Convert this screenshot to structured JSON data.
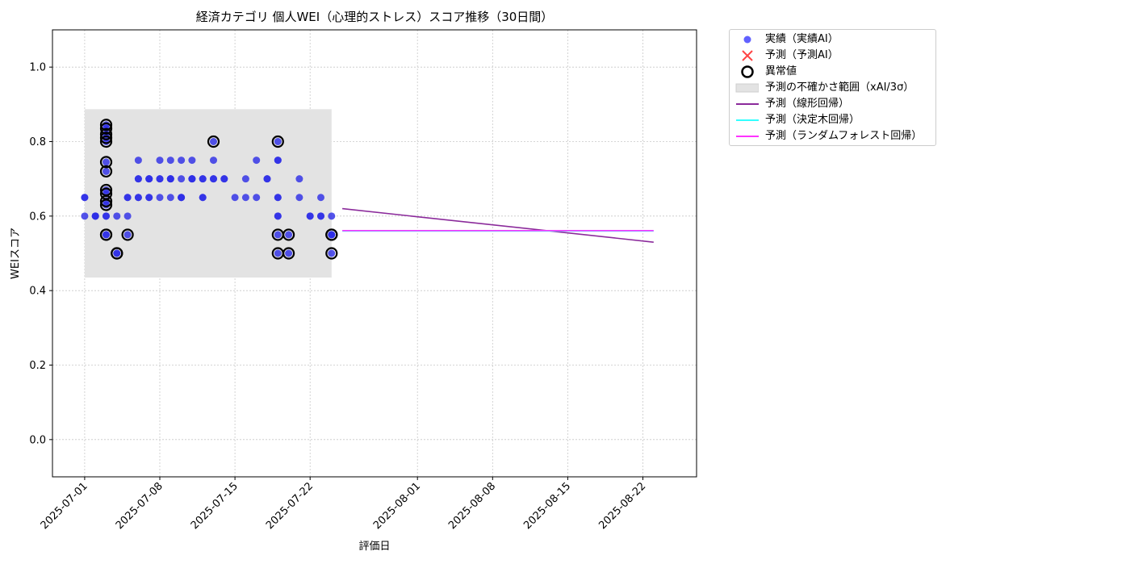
{
  "chart_data": {
    "type": "scatter",
    "title": "経済カテゴリ 個人WEI（心理的ストレス）スコア推移（30日間）",
    "xlabel": "評価日",
    "ylabel": "WEIスコア",
    "xlim": [
      "2025-06-28",
      "2025-08-27"
    ],
    "ylim": [
      -0.1,
      1.1
    ],
    "yticks": [
      0.0,
      0.2,
      0.4,
      0.6,
      0.8,
      1.0
    ],
    "xticks": [
      "2025-07-01",
      "2025-07-08",
      "2025-07-15",
      "2025-07-22",
      "2025-08-01",
      "2025-08-08",
      "2025-08-15",
      "2025-08-22"
    ],
    "grid": true,
    "legend_position": "outside top-right",
    "series": [
      {
        "name": "実績（実績AI）",
        "kind": "scatter",
        "color": "#0000ff",
        "points": [
          [
            "2025-07-01",
            0.65
          ],
          [
            "2025-07-01",
            0.6
          ],
          [
            "2025-07-01",
            0.65
          ],
          [
            "2025-07-02",
            0.6
          ],
          [
            "2025-07-02",
            0.6
          ],
          [
            "2025-07-02",
            0.6
          ],
          [
            "2025-07-03",
            0.6
          ],
          [
            "2025-07-03",
            0.55
          ],
          [
            "2025-07-03",
            0.6
          ],
          [
            "2025-07-03",
            0.63
          ],
          [
            "2025-07-03",
            0.64
          ],
          [
            "2025-07-03",
            0.66
          ],
          [
            "2025-07-03",
            0.67
          ],
          [
            "2025-07-03",
            0.72
          ],
          [
            "2025-07-03",
            0.745
          ],
          [
            "2025-07-03",
            0.8
          ],
          [
            "2025-07-03",
            0.81
          ],
          [
            "2025-07-03",
            0.82
          ],
          [
            "2025-07-03",
            0.835
          ],
          [
            "2025-07-03",
            0.845
          ],
          [
            "2025-07-03",
            0.55
          ],
          [
            "2025-07-04",
            0.5
          ],
          [
            "2025-07-04",
            0.6
          ],
          [
            "2025-07-04",
            0.5
          ],
          [
            "2025-07-05",
            0.55
          ],
          [
            "2025-07-05",
            0.6
          ],
          [
            "2025-07-05",
            0.65
          ],
          [
            "2025-07-05",
            0.65
          ],
          [
            "2025-07-06",
            0.7
          ],
          [
            "2025-07-06",
            0.75
          ],
          [
            "2025-07-06",
            0.65
          ],
          [
            "2025-07-06",
            0.65
          ],
          [
            "2025-07-06",
            0.7
          ],
          [
            "2025-07-07",
            0.7
          ],
          [
            "2025-07-07",
            0.7
          ],
          [
            "2025-07-07",
            0.65
          ],
          [
            "2025-07-07",
            0.65
          ],
          [
            "2025-07-07",
            0.7
          ],
          [
            "2025-07-08",
            0.7
          ],
          [
            "2025-07-08",
            0.65
          ],
          [
            "2025-07-08",
            0.7
          ],
          [
            "2025-07-08",
            0.75
          ],
          [
            "2025-07-09",
            0.7
          ],
          [
            "2025-07-09",
            0.65
          ],
          [
            "2025-07-09",
            0.75
          ],
          [
            "2025-07-09",
            0.7
          ],
          [
            "2025-07-09",
            0.7
          ],
          [
            "2025-07-10",
            0.65
          ],
          [
            "2025-07-10",
            0.7
          ],
          [
            "2025-07-10",
            0.75
          ],
          [
            "2025-07-10",
            0.65
          ],
          [
            "2025-07-10",
            0.65
          ],
          [
            "2025-07-11",
            0.7
          ],
          [
            "2025-07-11",
            0.75
          ],
          [
            "2025-07-11",
            0.7
          ],
          [
            "2025-07-11",
            0.7
          ],
          [
            "2025-07-12",
            0.7
          ],
          [
            "2025-07-12",
            0.7
          ],
          [
            "2025-07-12",
            0.65
          ],
          [
            "2025-07-12",
            0.65
          ],
          [
            "2025-07-13",
            0.7
          ],
          [
            "2025-07-13",
            0.75
          ],
          [
            "2025-07-13",
            0.8
          ],
          [
            "2025-07-13",
            0.7
          ],
          [
            "2025-07-14",
            0.7
          ],
          [
            "2025-07-14",
            0.7
          ],
          [
            "2025-07-15",
            0.65
          ],
          [
            "2025-07-16",
            0.7
          ],
          [
            "2025-07-16",
            0.65
          ],
          [
            "2025-07-17",
            0.75
          ],
          [
            "2025-07-17",
            0.65
          ],
          [
            "2025-07-18",
            0.7
          ],
          [
            "2025-07-18",
            0.7
          ],
          [
            "2025-07-19",
            0.8
          ],
          [
            "2025-07-19",
            0.65
          ],
          [
            "2025-07-19",
            0.75
          ],
          [
            "2025-07-19",
            0.75
          ],
          [
            "2025-07-19",
            0.65
          ],
          [
            "2025-07-19",
            0.6
          ],
          [
            "2025-07-19",
            0.55
          ],
          [
            "2025-07-19",
            0.5
          ],
          [
            "2025-07-19",
            0.6
          ],
          [
            "2025-07-20",
            0.55
          ],
          [
            "2025-07-20",
            0.5
          ],
          [
            "2025-07-21",
            0.7
          ],
          [
            "2025-07-21",
            0.65
          ],
          [
            "2025-07-22",
            0.6
          ],
          [
            "2025-07-22",
            0.6
          ],
          [
            "2025-07-23",
            0.65
          ],
          [
            "2025-07-23",
            0.6
          ],
          [
            "2025-07-23",
            0.6
          ],
          [
            "2025-07-24",
            0.55
          ],
          [
            "2025-07-24",
            0.55
          ],
          [
            "2025-07-24",
            0.6
          ],
          [
            "2025-07-24",
            0.5
          ],
          [
            "2025-07-24",
            0.55
          ]
        ]
      },
      {
        "name": "予測（予測AI）",
        "kind": "marker_x",
        "color": "#ff0000",
        "points": []
      },
      {
        "name": "異常値",
        "kind": "outlier_ring",
        "color": "#000000",
        "points": [
          [
            "2025-07-03",
            0.845
          ],
          [
            "2025-07-03",
            0.835
          ],
          [
            "2025-07-03",
            0.82
          ],
          [
            "2025-07-03",
            0.81
          ],
          [
            "2025-07-03",
            0.8
          ],
          [
            "2025-07-03",
            0.745
          ],
          [
            "2025-07-03",
            0.72
          ],
          [
            "2025-07-03",
            0.67
          ],
          [
            "2025-07-03",
            0.66
          ],
          [
            "2025-07-03",
            0.64
          ],
          [
            "2025-07-03",
            0.63
          ],
          [
            "2025-07-03",
            0.55
          ],
          [
            "2025-07-03",
            0.55
          ],
          [
            "2025-07-04",
            0.5
          ],
          [
            "2025-07-04",
            0.5
          ],
          [
            "2025-07-05",
            0.55
          ],
          [
            "2025-07-13",
            0.8
          ],
          [
            "2025-07-19",
            0.8
          ],
          [
            "2025-07-19",
            0.55
          ],
          [
            "2025-07-19",
            0.5
          ],
          [
            "2025-07-20",
            0.55
          ],
          [
            "2025-07-20",
            0.5
          ],
          [
            "2025-07-24",
            0.55
          ],
          [
            "2025-07-24",
            0.55
          ],
          [
            "2025-07-24",
            0.5
          ]
        ]
      },
      {
        "name": "予測の不確かさ範囲（xAI/3σ）",
        "kind": "band",
        "color": "#d9d9d9",
        "x_range": [
          "2025-07-01",
          "2025-07-24"
        ],
        "y_range": [
          0.435,
          0.887
        ]
      },
      {
        "name": "予測（線形回帰）",
        "kind": "line",
        "color": "#8b2a9b",
        "points": [
          [
            "2025-07-25",
            0.62
          ],
          [
            "2025-08-23",
            0.53
          ]
        ]
      },
      {
        "name": "予測（決定木回帰）",
        "kind": "line",
        "color": "#33ffff",
        "points": [
          [
            "2025-07-25",
            0.56
          ],
          [
            "2025-08-23",
            0.56
          ]
        ]
      },
      {
        "name": "予測（ランダムフォレスト回帰）",
        "kind": "line",
        "color": "#ff33ff",
        "points": [
          [
            "2025-07-25",
            0.561
          ],
          [
            "2025-08-23",
            0.561
          ]
        ]
      }
    ]
  }
}
